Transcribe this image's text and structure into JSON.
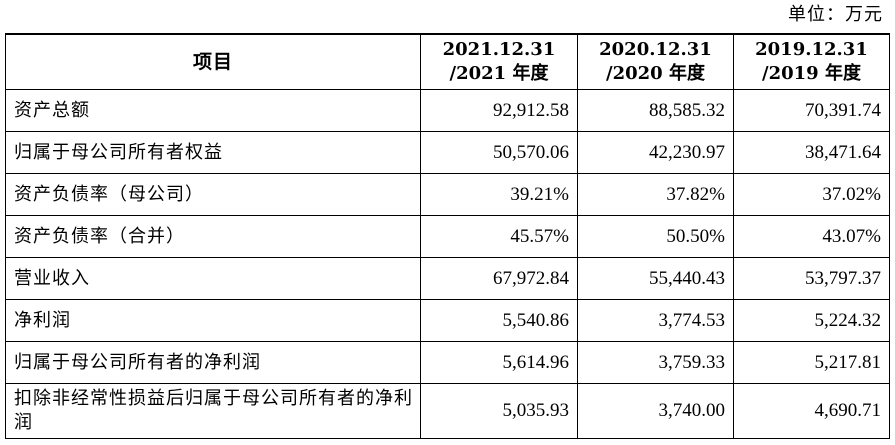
{
  "unit_label": "单位：万元",
  "table": {
    "headers": {
      "item": "项目",
      "cols": [
        {
          "line1": "2021.12.31",
          "line2": "/2021 年度"
        },
        {
          "line1": "2020.12.31",
          "line2": "/2020 年度"
        },
        {
          "line1": "2019.12.31",
          "line2": "/2019 年度"
        }
      ]
    },
    "rows": [
      {
        "label": "资产总额",
        "values": [
          "92,912.58",
          "88,585.32",
          "70,391.74"
        ]
      },
      {
        "label": "归属于母公司所有者权益",
        "values": [
          "50,570.06",
          "42,230.97",
          "38,471.64"
        ]
      },
      {
        "label": "资产负债率（母公司）",
        "values": [
          "39.21%",
          "37.82%",
          "37.02%"
        ]
      },
      {
        "label": "资产负债率（合并）",
        "values": [
          "45.57%",
          "50.50%",
          "43.07%"
        ]
      },
      {
        "label": "营业收入",
        "values": [
          "67,972.84",
          "55,440.43",
          "53,797.37"
        ]
      },
      {
        "label": "净利润",
        "values": [
          "5,540.86",
          "3,774.53",
          "5,224.32"
        ]
      },
      {
        "label": "归属于母公司所有者的净利润",
        "values": [
          "5,614.96",
          "3,759.33",
          "5,217.81"
        ]
      },
      {
        "label": "扣除非经常性损益后归属于母公司所有者的净利润",
        "values": [
          "5,035.93",
          "3,740.00",
          "4,690.71"
        ]
      }
    ]
  }
}
